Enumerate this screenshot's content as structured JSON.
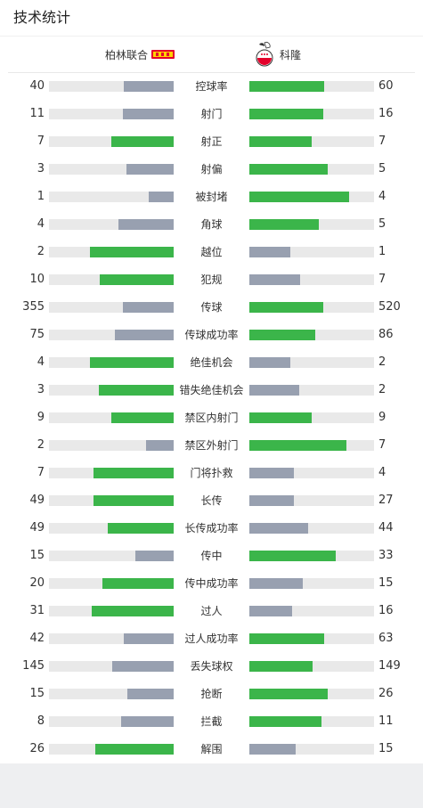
{
  "title": "技术统计",
  "teams": {
    "home": "柏林联合",
    "away": "科隆"
  },
  "colors": {
    "leader": "#3bb54a",
    "trailer": "#98a0b0",
    "track": "#e9e9e9"
  },
  "stats": [
    {
      "label": "控球率",
      "home": "40",
      "away": "60",
      "home_frac": 0.4,
      "away_frac": 0.6,
      "leader": "away"
    },
    {
      "label": "射门",
      "home": "11",
      "away": "16",
      "home_frac": 0.41,
      "away_frac": 0.59,
      "leader": "away"
    },
    {
      "label": "射正",
      "home": "7",
      "away": "7",
      "home_frac": 0.5,
      "away_frac": 0.5,
      "leader": "both"
    },
    {
      "label": "射偏",
      "home": "3",
      "away": "5",
      "home_frac": 0.38,
      "away_frac": 0.63,
      "leader": "away"
    },
    {
      "label": "被封堵",
      "home": "1",
      "away": "4",
      "home_frac": 0.2,
      "away_frac": 0.8,
      "leader": "away"
    },
    {
      "label": "角球",
      "home": "4",
      "away": "5",
      "home_frac": 0.44,
      "away_frac": 0.56,
      "leader": "away"
    },
    {
      "label": "越位",
      "home": "2",
      "away": "1",
      "home_frac": 0.67,
      "away_frac": 0.33,
      "leader": "home"
    },
    {
      "label": "犯规",
      "home": "10",
      "away": "7",
      "home_frac": 0.59,
      "away_frac": 0.41,
      "leader": "home"
    },
    {
      "label": "传球",
      "home": "355",
      "away": "520",
      "home_frac": 0.41,
      "away_frac": 0.59,
      "leader": "away"
    },
    {
      "label": "传球成功率",
      "home": "75",
      "away": "86",
      "home_frac": 0.47,
      "away_frac": 0.53,
      "leader": "away"
    },
    {
      "label": "绝佳机会",
      "home": "4",
      "away": "2",
      "home_frac": 0.67,
      "away_frac": 0.33,
      "leader": "home"
    },
    {
      "label": "错失绝佳机会",
      "home": "3",
      "away": "2",
      "home_frac": 0.6,
      "away_frac": 0.4,
      "leader": "home"
    },
    {
      "label": "禁区内射门",
      "home": "9",
      "away": "9",
      "home_frac": 0.5,
      "away_frac": 0.5,
      "leader": "both"
    },
    {
      "label": "禁区外射门",
      "home": "2",
      "away": "7",
      "home_frac": 0.22,
      "away_frac": 0.78,
      "leader": "away"
    },
    {
      "label": "门将扑救",
      "home": "7",
      "away": "4",
      "home_frac": 0.64,
      "away_frac": 0.36,
      "leader": "home"
    },
    {
      "label": "长传",
      "home": "49",
      "away": "27",
      "home_frac": 0.64,
      "away_frac": 0.36,
      "leader": "home"
    },
    {
      "label": "长传成功率",
      "home": "49",
      "away": "44",
      "home_frac": 0.53,
      "away_frac": 0.47,
      "leader": "home"
    },
    {
      "label": "传中",
      "home": "15",
      "away": "33",
      "home_frac": 0.31,
      "away_frac": 0.69,
      "leader": "away"
    },
    {
      "label": "传中成功率",
      "home": "20",
      "away": "15",
      "home_frac": 0.57,
      "away_frac": 0.43,
      "leader": "home"
    },
    {
      "label": "过人",
      "home": "31",
      "away": "16",
      "home_frac": 0.66,
      "away_frac": 0.34,
      "leader": "home"
    },
    {
      "label": "过人成功率",
      "home": "42",
      "away": "63",
      "home_frac": 0.4,
      "away_frac": 0.6,
      "leader": "away"
    },
    {
      "label": "丢失球权",
      "home": "145",
      "away": "149",
      "home_frac": 0.49,
      "away_frac": 0.51,
      "leader": "away"
    },
    {
      "label": "抢断",
      "home": "15",
      "away": "26",
      "home_frac": 0.37,
      "away_frac": 0.63,
      "leader": "away"
    },
    {
      "label": "拦截",
      "home": "8",
      "away": "11",
      "home_frac": 0.42,
      "away_frac": 0.58,
      "leader": "away"
    },
    {
      "label": "解围",
      "home": "26",
      "away": "15",
      "home_frac": 0.63,
      "away_frac": 0.37,
      "leader": "home"
    }
  ]
}
